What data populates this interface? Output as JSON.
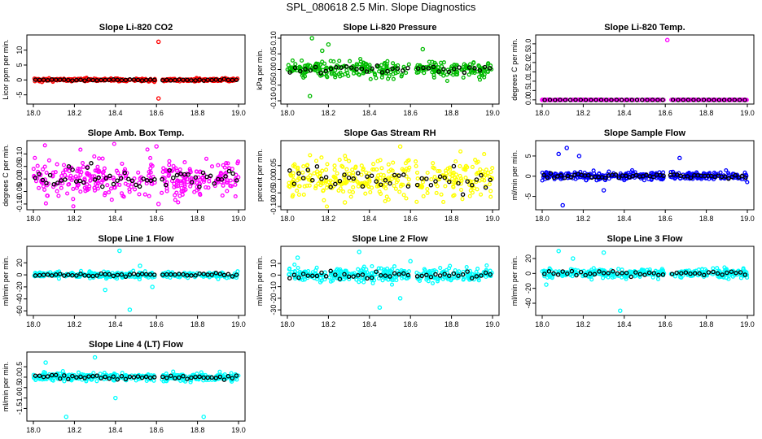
{
  "figure_title": "SPL_080618  2.5 Min. Slope Diagnostics",
  "chart_data": [
    {
      "id": "co2",
      "type": "scatter",
      "title": "Slope Li-820 CO2",
      "ylabel": "Licor ppm per min.",
      "xlim": [
        18.0,
        19.0
      ],
      "ylim": [
        -7,
        14
      ],
      "xticks": [
        "18.0",
        "18.2",
        "18.4",
        "18.6",
        "18.8",
        "19.0"
      ],
      "yticks": [
        {
          "v": -10,
          "label": "-10"
        },
        {
          "v": -5,
          "label": "-5"
        },
        {
          "v": 0,
          "label": "0"
        },
        {
          "v": 5,
          "label": "5"
        },
        {
          "v": 10,
          "label": "10"
        }
      ],
      "color": "#ff0000",
      "sd": 0.25,
      "outliers": [
        [
          18.61,
          12.8
        ],
        [
          18.61,
          -6.2
        ]
      ],
      "nblack": 50
    },
    {
      "id": "pressure",
      "type": "scatter",
      "title": "Slope Li-820 Pressure",
      "ylabel": "kPa per min.",
      "xlim": [
        18.0,
        19.0
      ],
      "ylim": [
        -0.1,
        0.1
      ],
      "xticks": [
        "18.0",
        "18.2",
        "18.4",
        "18.6",
        "18.8",
        "19.0"
      ],
      "yticks": [
        {
          "v": -0.1,
          "label": "-0.10"
        },
        {
          "v": -0.05,
          "label": "-0.05"
        },
        {
          "v": 0,
          "label": "0.00"
        },
        {
          "v": 0.05,
          "label": "0.05"
        },
        {
          "v": 0.1,
          "label": "0.10"
        }
      ],
      "color": "#00bb00",
      "sd": 0.012,
      "outliers": [
        [
          18.12,
          0.1
        ],
        [
          18.2,
          0.08
        ],
        [
          18.11,
          -0.085
        ],
        [
          18.66,
          0.065
        ],
        [
          18.17,
          0.06
        ]
      ],
      "nblack": 40
    },
    {
      "id": "temp",
      "type": "scatter",
      "title": "Slope Li-820 Temp.",
      "ylabel": "degrees C per min.",
      "xlim": [
        18.0,
        19.0
      ],
      "ylim": [
        -0.05,
        3.3
      ],
      "xticks": [
        "18.0",
        "18.2",
        "18.4",
        "18.6",
        "18.8",
        "19.0"
      ],
      "yticks": [
        {
          "v": 0,
          "label": "0.0"
        },
        {
          "v": 0.5,
          "label": "0.5"
        },
        {
          "v": 1,
          "label": "1.0"
        },
        {
          "v": 1.5,
          "label": "1.5"
        },
        {
          "v": 2,
          "label": "2.0"
        },
        {
          "v": 2.5,
          "label": "2.5"
        },
        {
          "v": 3,
          "label": "3.0"
        }
      ],
      "color": "#ff00ff",
      "sd": 0.005,
      "outliers": [
        [
          18.61,
          3.2
        ],
        [
          18.0,
          0.0
        ]
      ],
      "nblack": 40
    },
    {
      "id": "boxtemp",
      "type": "scatter",
      "title": "Slope Amb. Box Temp.",
      "ylabel": "degrees C per min.",
      "xlim": [
        18.0,
        19.0
      ],
      "ylim": [
        -0.11,
        0.14
      ],
      "xticks": [
        "18.0",
        "18.2",
        "18.4",
        "18.6",
        "18.8",
        "19.0"
      ],
      "yticks": [
        {
          "v": -0.1,
          "label": "-0.10"
        },
        {
          "v": -0.05,
          "label": "-0.05"
        },
        {
          "v": 0,
          "label": "0.00"
        },
        {
          "v": 0.05,
          "label": "0.05"
        },
        {
          "v": 0.1,
          "label": "0.10"
        }
      ],
      "color": "#ff00ff",
      "sd": 0.04,
      "outliers": [
        [
          18.6,
          0.13
        ],
        [
          18.61,
          -0.1
        ]
      ],
      "nblack": 55
    },
    {
      "id": "rh",
      "type": "scatter",
      "title": "Slope Gas Stream RH",
      "ylabel": "percent per min.",
      "xlim": [
        18.0,
        19.0
      ],
      "ylim": [
        -0.1,
        0.13
      ],
      "xticks": [
        "18.0",
        "18.2",
        "18.4",
        "18.6",
        "18.8",
        "19.0"
      ],
      "yticks": [
        {
          "v": -0.1,
          "label": "-0.10"
        },
        {
          "v": -0.05,
          "label": "-0.05"
        },
        {
          "v": 0,
          "label": "0.00"
        },
        {
          "v": 0.05,
          "label": "0.05"
        }
      ],
      "color": "#ffff00",
      "sd": 0.035,
      "outliers": [
        [
          18.55,
          0.12
        ],
        [
          18.28,
          -0.085
        ]
      ],
      "nblack": 45
    },
    {
      "id": "sampleflow",
      "type": "scatter",
      "title": "Slope Sample Flow",
      "ylabel": "ml/min per min.",
      "xlim": [
        18.0,
        19.0
      ],
      "ylim": [
        -7.5,
        8
      ],
      "xticks": [
        "18.0",
        "18.2",
        "18.4",
        "18.6",
        "18.8",
        "19.0"
      ],
      "yticks": [
        {
          "v": -5,
          "label": "-5"
        },
        {
          "v": 0,
          "label": "0"
        },
        {
          "v": 5,
          "label": "5"
        }
      ],
      "color": "#0000ff",
      "sd": 0.5,
      "outliers": [
        [
          18.12,
          7.0
        ],
        [
          18.08,
          5.5
        ],
        [
          18.1,
          -7.2
        ],
        [
          18.18,
          5.0
        ],
        [
          18.67,
          4.5
        ],
        [
          18.3,
          -3.5
        ]
      ],
      "nblack": 60
    },
    {
      "id": "line1",
      "type": "scatter",
      "title": "Slope Line 1 Flow",
      "ylabel": "ml/min per min.",
      "xlim": [
        18.0,
        19.0
      ],
      "ylim": [
        -62,
        42
      ],
      "xticks": [
        "18.0",
        "18.2",
        "18.4",
        "18.6",
        "18.8",
        "19.0"
      ],
      "yticks": [
        {
          "v": -60,
          "label": "-60"
        },
        {
          "v": -40,
          "label": "-40"
        },
        {
          "v": -20,
          "label": "-20"
        },
        {
          "v": 0,
          "label": "0"
        },
        {
          "v": 20,
          "label": "20"
        }
      ],
      "color": "#00ffff",
      "sd": 2.5,
      "outliers": [
        [
          18.42,
          40
        ],
        [
          18.47,
          -58
        ],
        [
          18.35,
          -25
        ],
        [
          18.52,
          15
        ],
        [
          18.58,
          -20
        ]
      ],
      "nblack": 50
    },
    {
      "id": "line2",
      "type": "scatter",
      "title": "Slope Line 2 Flow",
      "ylabel": "ml/min per min.",
      "xlim": [
        18.0,
        19.0
      ],
      "ylim": [
        -32,
        22
      ],
      "xticks": [
        "18.0",
        "18.2",
        "18.4",
        "18.6",
        "18.8",
        "19.0"
      ],
      "yticks": [
        {
          "v": -30,
          "label": "-30"
        },
        {
          "v": -20,
          "label": "-20"
        },
        {
          "v": -10,
          "label": "-10"
        },
        {
          "v": 0,
          "label": "0"
        },
        {
          "v": 10,
          "label": "10"
        }
      ],
      "color": "#00ffff",
      "sd": 3,
      "outliers": [
        [
          18.35,
          20
        ],
        [
          18.45,
          -28
        ],
        [
          18.55,
          -20
        ],
        [
          18.05,
          15
        ],
        [
          18.6,
          12
        ]
      ],
      "nblack": 45
    },
    {
      "id": "line3",
      "type": "scatter",
      "title": "Slope Line 3 Flow",
      "ylabel": "ml/min per min.",
      "xlim": [
        18.0,
        19.0
      ],
      "ylim": [
        -52,
        32
      ],
      "xticks": [
        "18.0",
        "18.2",
        "18.4",
        "18.6",
        "18.8",
        "19.0"
      ],
      "yticks": [
        {
          "v": -40,
          "label": "-40"
        },
        {
          "v": -20,
          "label": "-20"
        },
        {
          "v": 0,
          "label": "0"
        },
        {
          "v": 20,
          "label": "20"
        }
      ],
      "color": "#00ffff",
      "sd": 3,
      "outliers": [
        [
          18.08,
          30
        ],
        [
          18.38,
          -50
        ],
        [
          18.3,
          28
        ],
        [
          18.02,
          -15
        ],
        [
          18.15,
          20
        ]
      ],
      "nblack": 45
    },
    {
      "id": "line4",
      "type": "scatter",
      "title": "Slope Line 4 (LT) Flow",
      "ylabel": "ml/min per min.",
      "xlim": [
        18.0,
        19.0
      ],
      "ylim": [
        -1.95,
        1.05
      ],
      "xticks": [
        "18.0",
        "18.2",
        "18.4",
        "18.6",
        "18.8",
        "19.0"
      ],
      "yticks": [
        {
          "v": -1.5,
          "label": "-1.5"
        },
        {
          "v": -1,
          "label": "-1.0"
        },
        {
          "v": -0.5,
          "label": "-0.5"
        },
        {
          "v": 0,
          "label": "0.0"
        },
        {
          "v": 0.5,
          "label": "0.5"
        }
      ],
      "color": "#00ffff",
      "sd": 0.1,
      "outliers": [
        [
          18.16,
          -1.9
        ],
        [
          18.83,
          -1.9
        ],
        [
          18.4,
          -1.0
        ],
        [
          18.3,
          0.95
        ],
        [
          18.06,
          0.7
        ]
      ],
      "nblack": 50
    }
  ]
}
